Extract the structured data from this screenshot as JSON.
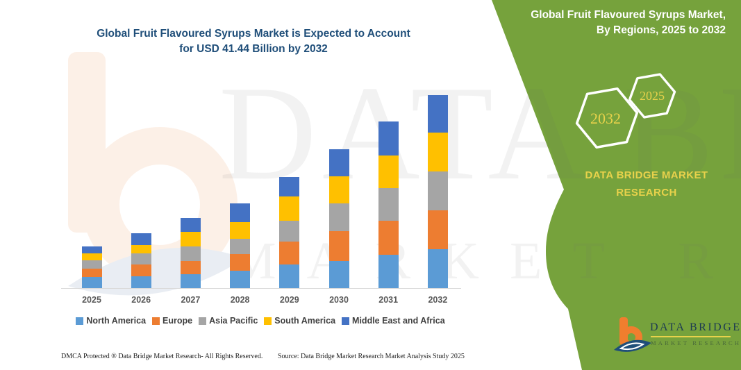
{
  "header": {
    "chart_title_line1": "Global Fruit Flavoured Syrups Market is Expected to Account",
    "chart_title_line2": "for USD 41.44 Billion by 2032"
  },
  "chart_data": {
    "type": "bar",
    "stacked": true,
    "title": "Global Fruit Flavoured Syrups Market is Expected to Account for USD 41.44 Billion by 2032",
    "unit": "USD Billion",
    "projected_total_2032": 41.44,
    "categories": [
      "2025",
      "2026",
      "2027",
      "2028",
      "2029",
      "2030",
      "2031",
      "2032"
    ],
    "series": [
      {
        "name": "North America",
        "color": "#5B9BD5",
        "values": [
          2.4,
          2.5,
          3.0,
          3.7,
          5.1,
          5.8,
          7.2,
          8.3
        ]
      },
      {
        "name": "Europe",
        "color": "#ED7D31",
        "values": [
          1.8,
          2.5,
          2.8,
          3.6,
          4.8,
          6.4,
          7.2,
          8.3
        ]
      },
      {
        "name": "Asia Pacific",
        "color": "#A5A5A5",
        "values": [
          1.8,
          2.5,
          3.1,
          3.3,
          4.5,
          6.0,
          7.0,
          8.4
        ]
      },
      {
        "name": "South America",
        "color": "#FFC000",
        "values": [
          1.5,
          1.8,
          3.1,
          3.6,
          5.2,
          5.7,
          7.0,
          8.3
        ]
      },
      {
        "name": "Middle East and Africa",
        "color": "#4472C4",
        "values": [
          1.5,
          2.5,
          3.0,
          3.9,
          4.2,
          5.8,
          7.3,
          8.1
        ]
      }
    ],
    "legend_position": "bottom",
    "gridlines": false,
    "y_axis_visible": false
  },
  "side_panel": {
    "title_line1": "Global Fruit Flavoured Syrups Market,",
    "title_line2": "By Regions, 2025 to 2032",
    "hexagon_large_label": "2032",
    "hexagon_small_label": "2025",
    "brand_line1": "DATA BRIDGE MARKET",
    "brand_line2": "RESEARCH",
    "panel_color": "#76A23C",
    "accent_yellow": "#E8D24B"
  },
  "watermark": {
    "line1": "DATA BRIDGE",
    "line2": "MARKET RESEARCH"
  },
  "logo": {
    "name": "DATA BRIDGE",
    "subtitle": "MARKET RESEARCH"
  },
  "footer": {
    "dmca": "DMCA Protected ® Data Bridge Market Research-  All Rights Reserved.",
    "source": "Source: Data Bridge Market Research  Market Analysis Study 2025"
  }
}
